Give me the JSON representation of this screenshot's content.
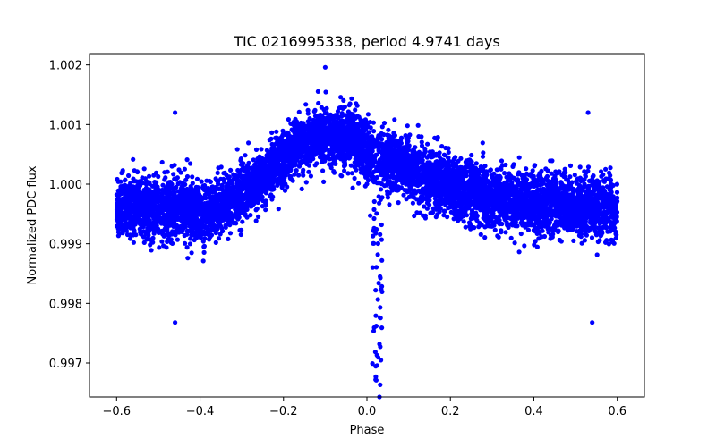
{
  "chart_data": {
    "type": "scatter",
    "title": "TIC 0216995338, period 4.9741 days",
    "xlabel": "Phase",
    "ylabel": "Normalized PDC flux",
    "xlim": [
      -0.665,
      0.665
    ],
    "ylim": [
      0.99643,
      1.00219
    ],
    "x_ticks": [
      -0.6,
      -0.4,
      -0.2,
      0.0,
      0.2,
      0.4,
      0.6
    ],
    "x_tick_labels": [
      "−0.6",
      "−0.4",
      "−0.2",
      "0.0",
      "0.2",
      "0.4",
      "0.6"
    ],
    "y_ticks": [
      0.997,
      0.998,
      0.999,
      1.0,
      1.001,
      1.002
    ],
    "y_tick_labels": [
      "0.997",
      "0.998",
      "0.999",
      "1.000",
      "1.001",
      "1.002"
    ],
    "grid": false,
    "marker_color": "#0000ff",
    "series": [
      {
        "x": [
          -0.6,
          -0.575,
          -0.55,
          -0.525,
          -0.5,
          -0.475,
          -0.45,
          -0.425,
          -0.4,
          -0.375,
          -0.35,
          -0.325,
          -0.3,
          -0.275,
          -0.25,
          -0.225,
          -0.2,
          -0.175,
          -0.15,
          -0.125,
          -0.1,
          -0.075,
          -0.05,
          -0.025,
          0.0,
          0.025,
          0.05,
          0.075,
          0.1,
          0.125,
          0.15,
          0.175,
          0.2,
          0.225,
          0.25,
          0.275,
          0.3,
          0.325,
          0.35,
          0.375,
          0.4,
          0.425,
          0.45,
          0.475,
          0.5,
          0.525,
          0.55,
          0.575,
          0.6
        ],
        "y": [
          0.99963,
          0.99962,
          0.99961,
          0.9996,
          0.9996,
          0.99959,
          0.99958,
          0.99956,
          0.99954,
          0.99955,
          0.99963,
          0.99972,
          0.99984,
          0.99998,
          1.00012,
          1.00028,
          1.00045,
          1.0006,
          1.00072,
          1.00078,
          1.00082,
          1.00083,
          1.0008,
          1.00072,
          1.00058,
          1.00047,
          1.00042,
          1.00035,
          1.00027,
          1.00018,
          1.0001,
          1.00004,
          0.99998,
          0.99993,
          0.99988,
          0.99983,
          0.99978,
          0.99975,
          0.99972,
          0.9997,
          0.99968,
          0.99967,
          0.99966,
          0.99965,
          0.99964,
          0.99963,
          0.99962,
          0.99961,
          0.9996
        ]
      }
    ],
    "transit": {
      "center": 0.025,
      "half_width": 0.012,
      "depth_min": 0.99643
    },
    "notable_points": [
      {
        "x": -0.1,
        "y": 1.00196
      },
      {
        "x": -0.46,
        "y": 1.0012
      },
      {
        "x": 0.53,
        "y": 1.0012
      },
      {
        "x": -0.46,
        "y": 0.99768
      },
      {
        "x": 0.54,
        "y": 0.99768
      },
      {
        "x": 0.03,
        "y": 0.99643
      }
    ]
  }
}
